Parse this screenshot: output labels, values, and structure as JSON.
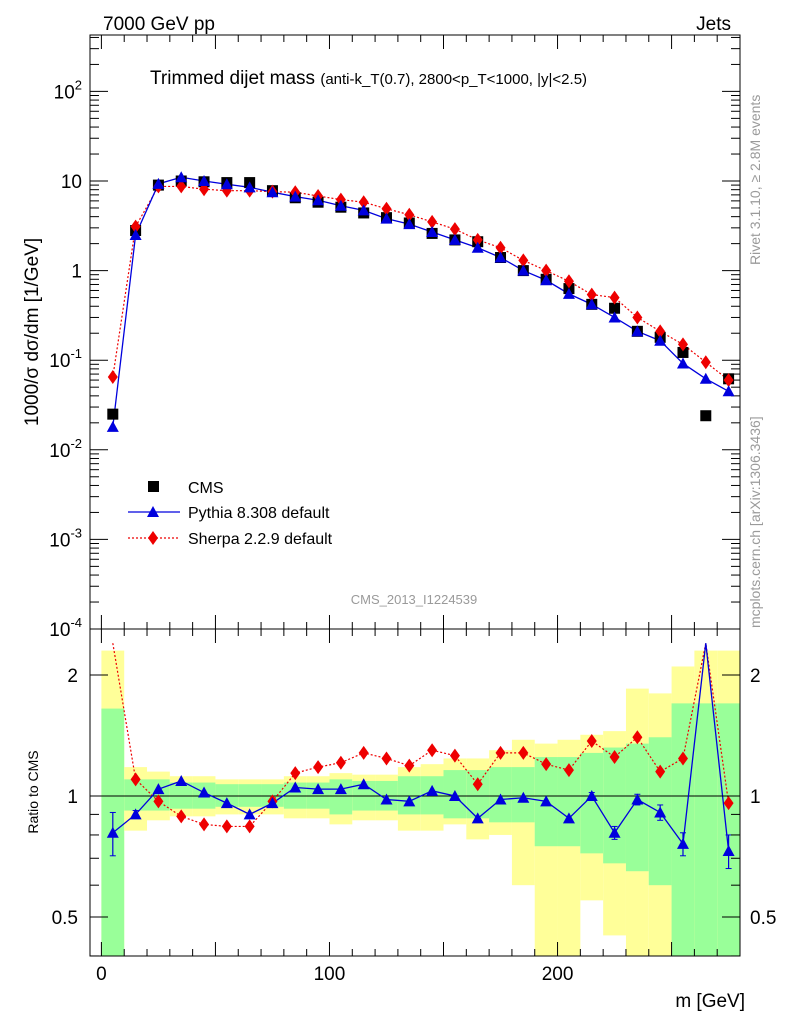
{
  "header": {
    "left": "7000 GeV pp",
    "right": "Jets",
    "title_main": "Trimmed dijet mass",
    "title_cond": "(anti-k_T(0.7), 2800<p_T<1000, |y|<2.5)",
    "rivet": "Rivet 3.1.10, ≥ 2.8M events",
    "mcplots": "mcplots.cern.ch [arXiv:1306.3436]",
    "analysis": "CMS_2013_I1224539"
  },
  "legend": {
    "cms": "CMS",
    "pythia": "Pythia 8.308 default",
    "sherpa": "Sherpa 2.2.9 default"
  },
  "colors": {
    "pythia": "#0000dd",
    "sherpa": "#ee0000",
    "data": "#000000",
    "band_inner": "#99ff99",
    "band_outer": "#ffff99"
  },
  "chart_data": [
    {
      "type": "scatter",
      "panel": "main",
      "ylabel": "1000/σ dσ/dm [1/GeV]",
      "yscale": "log",
      "ylim": [
        0.0001,
        400
      ],
      "xlim": [
        -5,
        280
      ],
      "yticks": [
        "10^{-4}",
        "10^{-3}",
        "10^{-2}",
        "10^{-1}",
        "1",
        "10",
        "10^{2}"
      ],
      "x": [
        5,
        15,
        25,
        35,
        45,
        55,
        65,
        75,
        85,
        95,
        105,
        115,
        125,
        135,
        145,
        155,
        165,
        175,
        185,
        195,
        205,
        215,
        225,
        235,
        245,
        255,
        265,
        275
      ],
      "series": [
        {
          "name": "CMS",
          "values": [
            0.025,
            2.8,
            9.0,
            10.0,
            9.8,
            9.6,
            9.6,
            7.8,
            6.5,
            5.8,
            5.1,
            4.4,
            3.9,
            3.4,
            2.6,
            2.2,
            2.1,
            1.4,
            1.0,
            0.8,
            0.63,
            0.42,
            0.38,
            0.21,
            0.18,
            0.122,
            0.024,
            0.062
          ]
        },
        {
          "name": "Pythia 8.308 default",
          "values": [
            0.018,
            2.5,
            9.3,
            11.0,
            10.0,
            9.2,
            8.5,
            7.5,
            6.7,
            6.1,
            5.3,
            4.7,
            3.8,
            3.3,
            2.7,
            2.2,
            1.8,
            1.4,
            1.0,
            0.78,
            0.55,
            0.42,
            0.3,
            0.21,
            0.165,
            0.092,
            0.062,
            0.045
          ]
        },
        {
          "name": "Sherpa 2.2.9 default",
          "values": [
            0.065,
            3.1,
            8.7,
            8.7,
            8.1,
            7.8,
            7.8,
            7.6,
            7.5,
            6.8,
            6.2,
            5.8,
            4.9,
            4.2,
            3.5,
            2.9,
            2.2,
            1.8,
            1.3,
            1.0,
            0.76,
            0.54,
            0.5,
            0.3,
            0.21,
            0.15,
            0.095,
            0.06
          ]
        }
      ]
    },
    {
      "type": "line",
      "panel": "ratio",
      "ylabel": "Ratio to CMS",
      "xlabel": "m [GeV]",
      "ylim": [
        0.35,
        2.3
      ],
      "xticks": [
        0,
        100,
        200
      ],
      "yticks": [
        0.5,
        1,
        2
      ],
      "x": [
        5,
        15,
        25,
        35,
        45,
        55,
        65,
        75,
        85,
        95,
        105,
        115,
        125,
        135,
        145,
        155,
        165,
        175,
        185,
        195,
        205,
        215,
        225,
        235,
        245,
        255,
        265,
        275
      ],
      "series": [
        {
          "name": "Pythia 8.308 default",
          "values": [
            0.81,
            0.9,
            1.04,
            1.09,
            1.02,
            0.96,
            0.9,
            0.96,
            1.05,
            1.04,
            1.04,
            1.07,
            0.98,
            0.97,
            1.03,
            1.0,
            0.88,
            0.98,
            0.99,
            0.97,
            0.88,
            1.0,
            0.81,
            0.98,
            0.91,
            0.76,
            2.6,
            0.73
          ]
        },
        {
          "name": "Sherpa 2.2.9 default",
          "values": [
            2.6,
            1.1,
            0.97,
            0.89,
            0.85,
            0.84,
            0.84,
            0.97,
            1.14,
            1.18,
            1.21,
            1.28,
            1.24,
            1.19,
            1.3,
            1.26,
            1.07,
            1.28,
            1.28,
            1.2,
            1.16,
            1.37,
            1.25,
            1.4,
            1.15,
            1.24,
            3.9,
            0.96
          ]
        },
        {
          "name": "band_inner_lo",
          "values": [
            0.4,
            0.92,
            0.92,
            0.93,
            0.93,
            0.94,
            0.94,
            0.94,
            0.93,
            0.93,
            0.9,
            0.92,
            0.92,
            0.9,
            0.9,
            0.88,
            0.88,
            0.86,
            0.86,
            0.75,
            0.75,
            0.72,
            0.68,
            0.65,
            0.6,
            0.35,
            0.35,
            0.35
          ]
        },
        {
          "name": "band_inner_hi",
          "values": [
            1.65,
            1.1,
            1.1,
            1.08,
            1.08,
            1.07,
            1.07,
            1.07,
            1.08,
            1.08,
            1.1,
            1.09,
            1.09,
            1.12,
            1.12,
            1.16,
            1.16,
            1.18,
            1.18,
            1.25,
            1.25,
            1.28,
            1.32,
            1.35,
            1.4,
            1.7,
            1.7,
            1.7
          ]
        },
        {
          "name": "band_outer_lo",
          "values": [
            0.35,
            0.82,
            0.87,
            0.89,
            0.89,
            0.9,
            0.9,
            0.9,
            0.88,
            0.88,
            0.85,
            0.87,
            0.87,
            0.82,
            0.82,
            0.85,
            0.78,
            0.8,
            0.6,
            0.4,
            0.35,
            0.55,
            0.45,
            0.35,
            0.35,
            0.35,
            0.35,
            0.35
          ]
        },
        {
          "name": "band_outer_hi",
          "values": [
            2.3,
            1.18,
            1.15,
            1.12,
            1.12,
            1.1,
            1.1,
            1.1,
            1.12,
            1.12,
            1.14,
            1.13,
            1.13,
            1.18,
            1.2,
            1.24,
            1.24,
            1.3,
            1.38,
            1.35,
            1.38,
            1.42,
            1.45,
            1.85,
            1.8,
            2.1,
            2.3,
            2.3
          ]
        }
      ],
      "error_bars": {
        "pythia": [
          0.1,
          0.02,
          0.01,
          0.01,
          0.01,
          0.01,
          0.01,
          0.01,
          0.01,
          0.01,
          0.01,
          0.01,
          0.01,
          0.01,
          0.01,
          0.01,
          0.01,
          0.01,
          0.01,
          0.01,
          0.015,
          0.02,
          0.03,
          0.03,
          0.04,
          0.05,
          0.3,
          0.07
        ]
      }
    }
  ]
}
